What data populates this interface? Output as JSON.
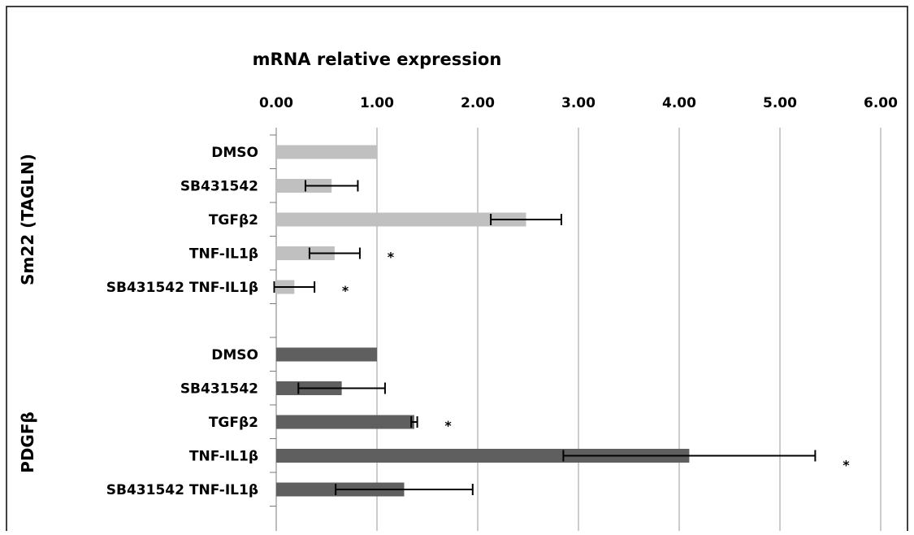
{
  "chart_data": {
    "type": "bar",
    "orientation": "horizontal",
    "title": "mRNA relative expression",
    "x_axis_position": "top",
    "xlim": [
      0,
      6
    ],
    "xticks": [
      "0.00",
      "1.00",
      "2.00",
      "3.00",
      "4.00",
      "5.00",
      "6.00"
    ],
    "grid": "vertical",
    "colors": {
      "sm22": "#c0c0c0",
      "pdgfb": "#5f5f5f",
      "grid": "#9a9a9a",
      "frame": "#000000"
    },
    "groups": [
      {
        "name": "Sm22 (TAGLN)",
        "color_key": "sm22",
        "categories": [
          "DMSO",
          "SB431542",
          "TGFβ2",
          "TNF-IL1β",
          "SB431542 TNF-IL1β"
        ],
        "values": [
          1.0,
          0.55,
          2.48,
          0.58,
          0.18
        ],
        "errors": [
          0,
          0.26,
          0.35,
          0.25,
          0.2
        ],
        "annotations": [
          "",
          "",
          "",
          "*",
          "*"
        ]
      },
      {
        "name": "PDGFβ",
        "color_key": "pdgfb",
        "categories": [
          "DMSO",
          "SB431542",
          "TGFβ2",
          "TNF-IL1β",
          "SB431542 TNF-IL1β"
        ],
        "values": [
          1.0,
          0.65,
          1.37,
          4.1,
          1.27
        ],
        "errors": [
          0,
          0.43,
          0.03,
          1.25,
          0.68
        ],
        "annotations": [
          "",
          "",
          "*",
          "*",
          ""
        ]
      }
    ]
  }
}
